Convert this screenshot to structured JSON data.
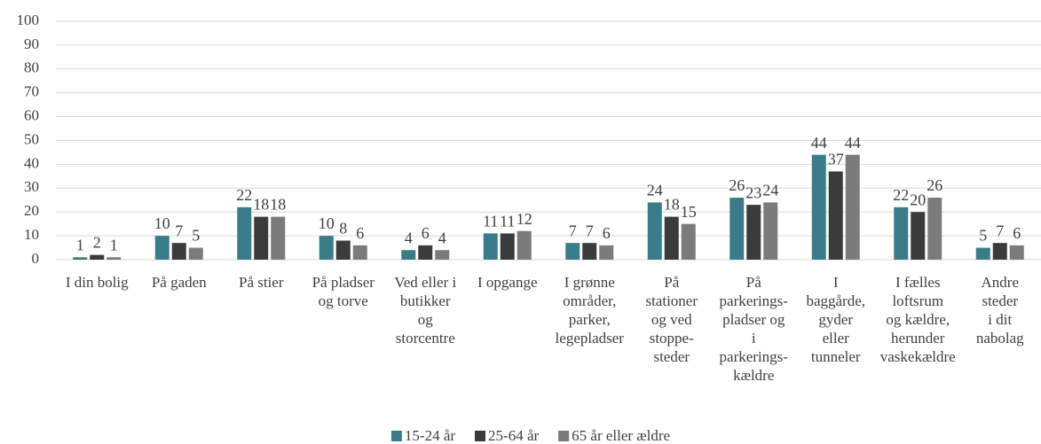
{
  "chart_data": {
    "type": "bar",
    "categories": [
      "I din bolig",
      "På gaden",
      "På stier",
      "På pladser\nog torve",
      "Ved eller i\nbutikker\nog\nstorcentre",
      "I opgange",
      "I grønne\nområder,\nparker,\nlegepladser",
      "På\nstationer\nog ved\nstoppe-\nsteder",
      "På\nparkerings-\npladser og\ni\nparkerings-\nkældre",
      "I\nbaggårde,\ngyder\neller\ntunneler",
      "I fælles\nloftsrum\nog kældre,\nherunder\nvaskekældre",
      "Andre\nsteder\ni dit\nnabolag"
    ],
    "series": [
      {
        "name": "15-24 år",
        "color": "#3b7c8b",
        "values": [
          1,
          10,
          22,
          10,
          4,
          11,
          7,
          24,
          26,
          44,
          22,
          5
        ]
      },
      {
        "name": "25-64 år",
        "color": "#3b3b3b",
        "values": [
          2,
          7,
          18,
          8,
          6,
          11,
          7,
          18,
          23,
          37,
          20,
          7
        ]
      },
      {
        "name": "65 år eller ældre",
        "color": "#7b7b7b",
        "values": [
          1,
          5,
          18,
          6,
          4,
          12,
          6,
          15,
          24,
          44,
          26,
          6
        ]
      }
    ],
    "ylim": [
      0,
      100
    ],
    "yticks": [
      0,
      10,
      20,
      30,
      40,
      50,
      60,
      70,
      80,
      90,
      100
    ],
    "grid": true,
    "legend": "bottom"
  }
}
